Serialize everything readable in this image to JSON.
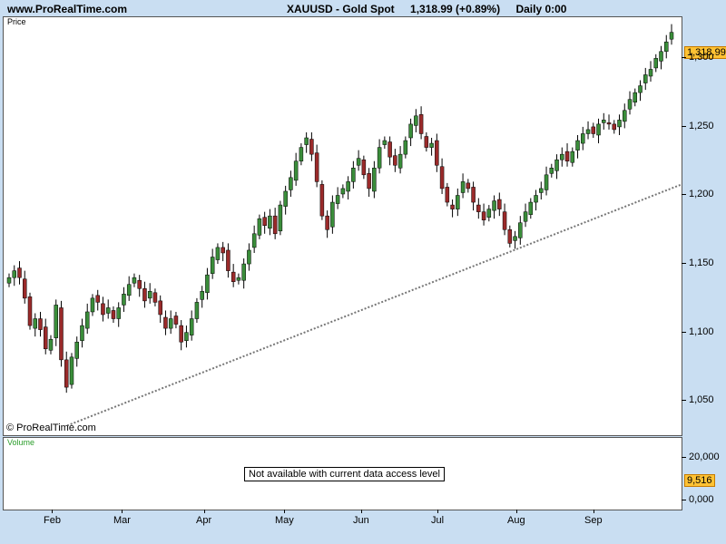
{
  "header": {
    "site": "www.ProRealTime.com",
    "symbol": "XAUUSD - Gold Spot",
    "last_change": "1,318.99 (+0.89%)",
    "period": "Daily  0:00"
  },
  "price_panel": {
    "label": "Price",
    "copyright": "© ProRealTime.com",
    "last_price_badge": "1,318.99"
  },
  "volume_panel": {
    "label": "Volume",
    "notice": "Not available with current data access level",
    "last_volume_badge": "9,516",
    "ticks": [
      "20,000",
      "0,000"
    ]
  },
  "chart_data": {
    "type": "candlestick",
    "title": "XAUUSD - Gold Spot",
    "ylim": [
      1025,
      1330
    ],
    "y_ticks": [
      1050,
      1100,
      1150,
      1200,
      1250,
      1300
    ],
    "y_tick_labels": [
      "1,050",
      "1,100",
      "1,150",
      "1,200",
      "1,250",
      "1,300"
    ],
    "x_tick_labels": [
      "Feb",
      "Mar",
      "Apr",
      "May",
      "Jun",
      "Jul",
      "Aug",
      "Sep"
    ],
    "last_close": 1318.99,
    "change_pct": 0.89,
    "trendline": {
      "style": "dotted",
      "points": [
        [
          0,
          1032
        ],
        [
          1,
          1208
        ]
      ]
    },
    "close_approx": [
      1140,
      1145,
      1140,
      1125,
      1105,
      1110,
      1102,
      1088,
      1095,
      1120,
      1080,
      1060,
      1082,
      1093,
      1105,
      1115,
      1125,
      1122,
      1113,
      1118,
      1110,
      1118,
      1128,
      1135,
      1140,
      1132,
      1123,
      1130,
      1122,
      1113,
      1103,
      1110,
      1106,
      1093,
      1100,
      1110,
      1122,
      1130,
      1142,
      1155,
      1162,
      1158,
      1145,
      1137,
      1140,
      1150,
      1160,
      1172,
      1183,
      1178,
      1185,
      1172,
      1193,
      1203,
      1213,
      1225,
      1235,
      1242,
      1230,
      1210,
      1185,
      1175,
      1195,
      1200,
      1205,
      1210,
      1220,
      1227,
      1215,
      1205,
      1220,
      1235,
      1240,
      1228,
      1222,
      1230,
      1240,
      1252,
      1258,
      1245,
      1235,
      1238,
      1222,
      1205,
      1195,
      1190,
      1200,
      1210,
      1205,
      1195,
      1188,
      1182,
      1190,
      1196,
      1190,
      1175,
      1165,
      1170,
      1180,
      1188,
      1195,
      1200,
      1205,
      1215,
      1220,
      1226,
      1230,
      1225,
      1232,
      1240,
      1245,
      1248,
      1245,
      1252,
      1255,
      1252,
      1248,
      1255,
      1262,
      1270,
      1275,
      1280,
      1288,
      1292,
      1300,
      1305,
      1312,
      1318.99
    ]
  }
}
